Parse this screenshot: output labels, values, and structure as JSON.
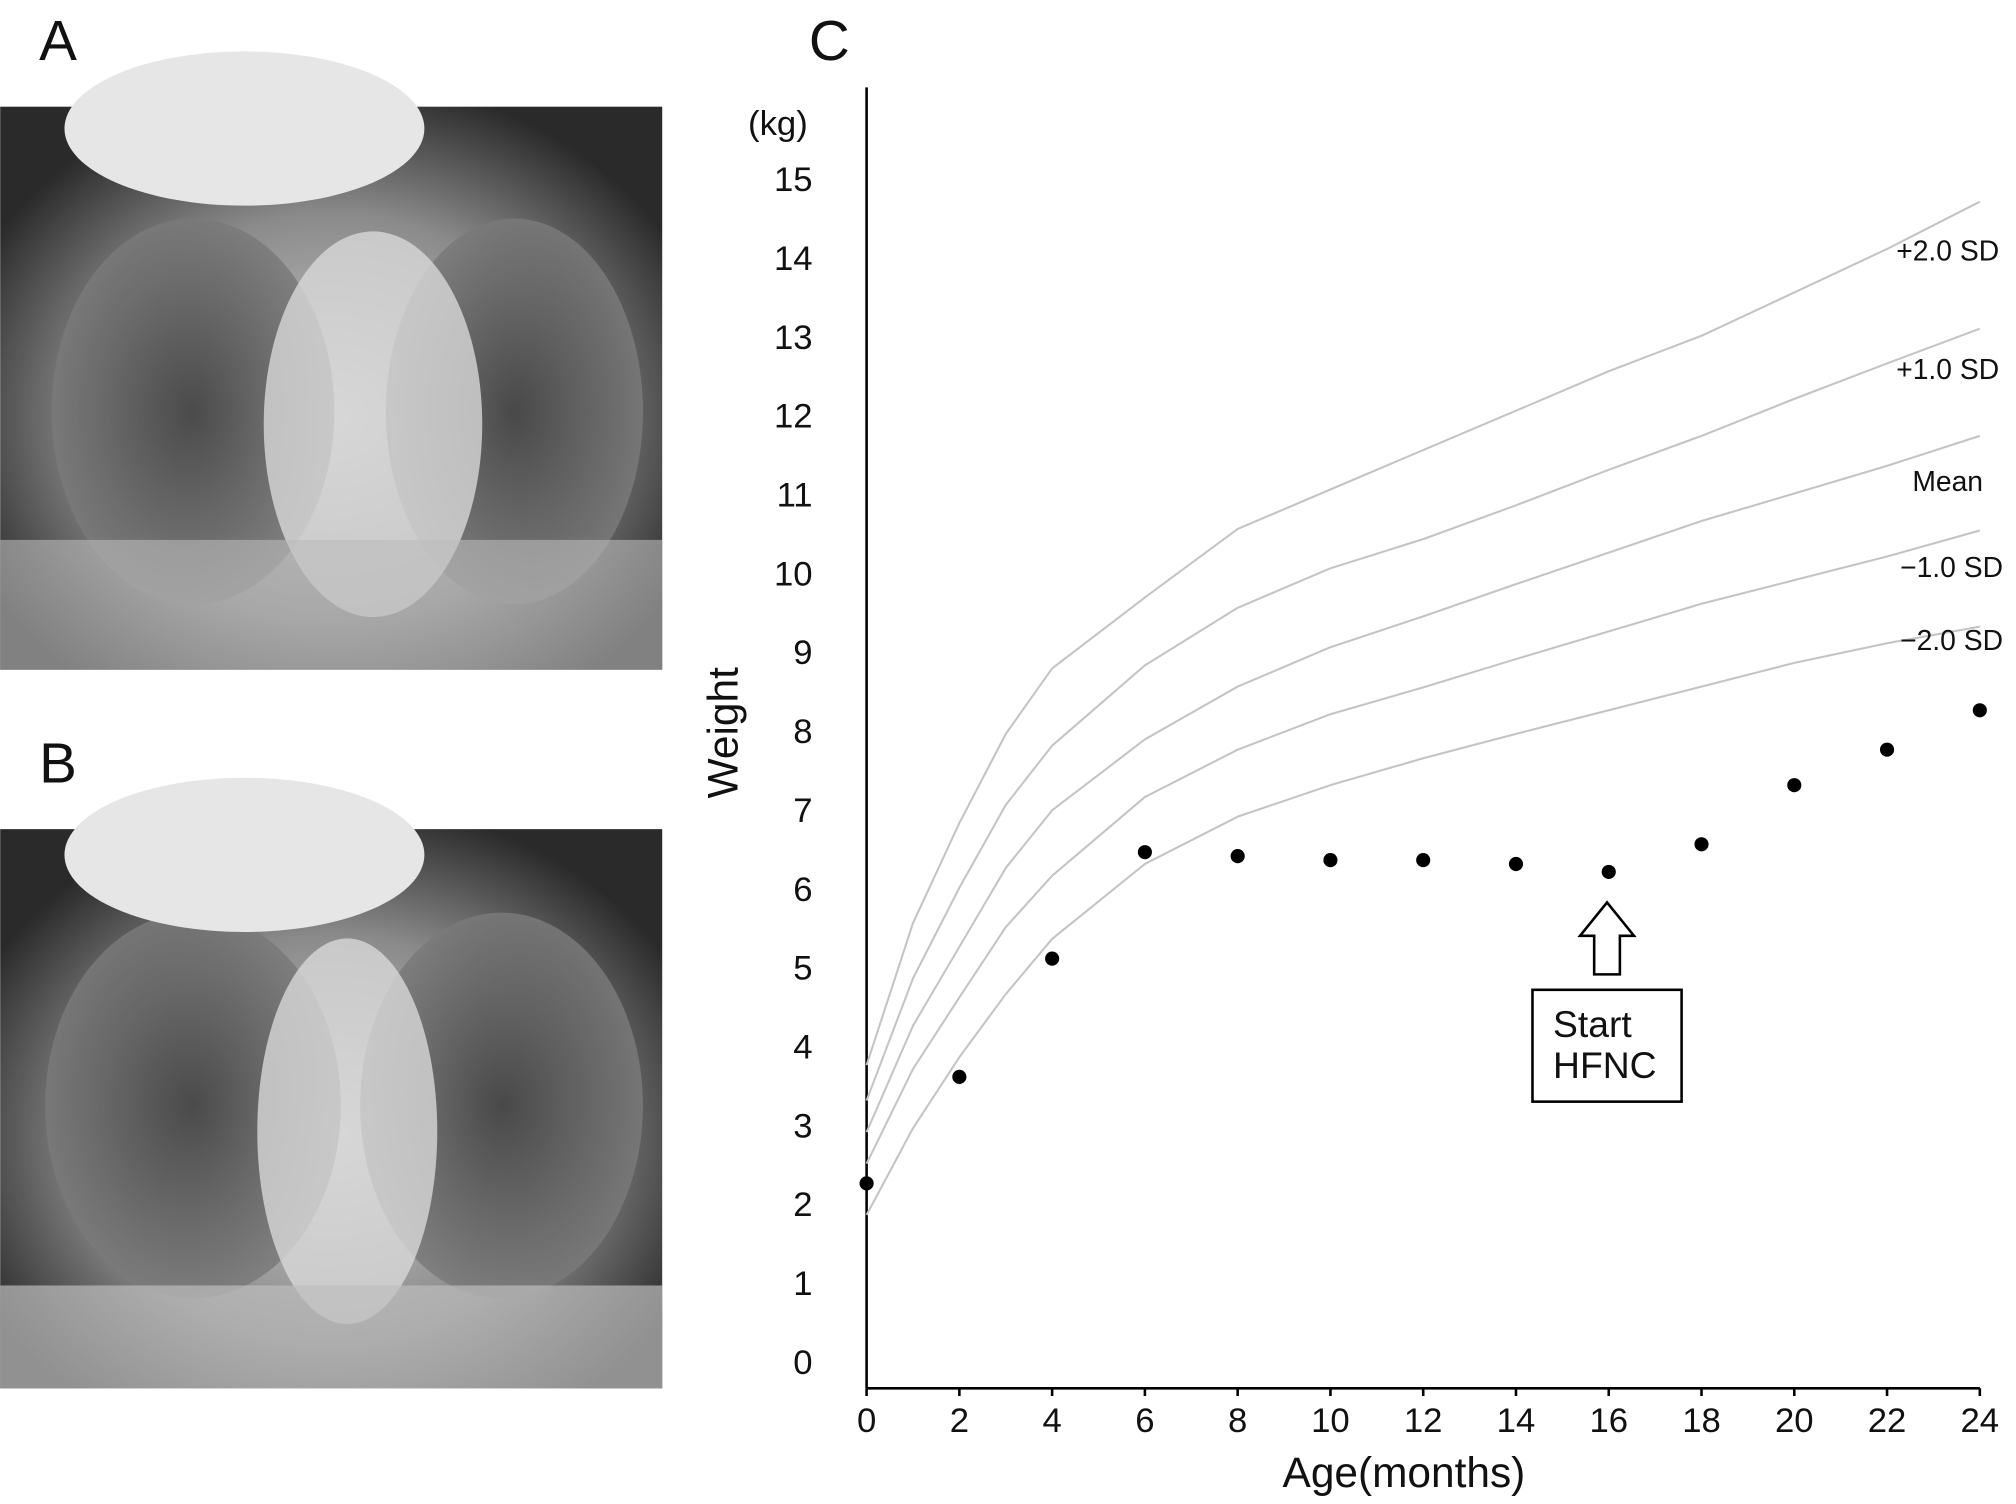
{
  "panel_labels": [
    "A",
    "B",
    "C"
  ],
  "chart_data": {
    "type": "line",
    "y_unit": "(kg)",
    "ylabel": "Weight",
    "xlabel": "Age(months)",
    "annotation": [
      "Start",
      "HFNC"
    ],
    "xlim": [
      0,
      24
    ],
    "ylim": [
      -0.3,
      16.2
    ],
    "xticks": [
      0,
      2,
      4,
      6,
      8,
      10,
      12,
      14,
      16,
      18,
      20,
      22,
      24
    ],
    "yticks": [
      0,
      1,
      2,
      3,
      4,
      5,
      6,
      7,
      8,
      9,
      10,
      11,
      12,
      13,
      14,
      15
    ],
    "series": [
      {
        "name": "+2.0 SD",
        "type": "line",
        "color": "#c4c4c4",
        "x": [
          0,
          1,
          2,
          3,
          4,
          6,
          8,
          10,
          12,
          14,
          16,
          18,
          20,
          22,
          24
        ],
        "values": [
          3.8,
          5.6,
          6.87,
          8.0,
          8.83,
          9.73,
          10.6,
          11.1,
          11.6,
          12.1,
          12.6,
          13.05,
          13.6,
          14.15,
          14.75
        ]
      },
      {
        "name": "+1.0 SD",
        "type": "line",
        "color": "#c4c4c4",
        "x": [
          0,
          1,
          2,
          3,
          4,
          6,
          8,
          10,
          12,
          14,
          16,
          18,
          20,
          22,
          24
        ],
        "values": [
          3.35,
          4.9,
          6.05,
          7.1,
          7.85,
          8.87,
          9.6,
          10.1,
          10.47,
          10.9,
          11.35,
          11.78,
          12.25,
          12.7,
          13.14
        ]
      },
      {
        "name": "Mean",
        "type": "line",
        "color": "#c4c4c4",
        "x": [
          0,
          1,
          2,
          3,
          4,
          6,
          8,
          10,
          12,
          14,
          16,
          18,
          20,
          22,
          24
        ],
        "values": [
          2.95,
          4.3,
          5.3,
          6.3,
          7.03,
          7.93,
          8.6,
          9.1,
          9.49,
          9.9,
          10.3,
          10.7,
          11.05,
          11.4,
          11.78
        ]
      },
      {
        "name": "−1.0 SD",
        "type": "line",
        "color": "#c4c4c4",
        "x": [
          0,
          1,
          2,
          3,
          4,
          6,
          8,
          10,
          12,
          14,
          16,
          18,
          20,
          22,
          24
        ],
        "values": [
          2.55,
          3.75,
          4.66,
          5.55,
          6.2,
          7.2,
          7.8,
          8.25,
          8.59,
          8.95,
          9.3,
          9.65,
          9.95,
          10.25,
          10.58
        ]
      },
      {
        "name": "−2.0 SD",
        "type": "line",
        "color": "#c4c4c4",
        "x": [
          0,
          1,
          2,
          3,
          4,
          6,
          8,
          10,
          12,
          14,
          16,
          18,
          20,
          22,
          24
        ],
        "values": [
          1.9,
          3.0,
          3.9,
          4.7,
          5.4,
          6.35,
          6.95,
          7.35,
          7.69,
          8.0,
          8.3,
          8.6,
          8.9,
          9.15,
          9.36
        ]
      },
      {
        "type": "scatter",
        "color": "#000000",
        "x": [
          0,
          2,
          4,
          6,
          8,
          10,
          12,
          14,
          16,
          18,
          20,
          22,
          24
        ],
        "values": [
          2.3,
          3.65,
          5.15,
          6.5,
          6.45,
          6.4,
          6.4,
          6.35,
          6.25,
          6.6,
          7.35,
          7.8,
          8.3
        ]
      }
    ]
  }
}
